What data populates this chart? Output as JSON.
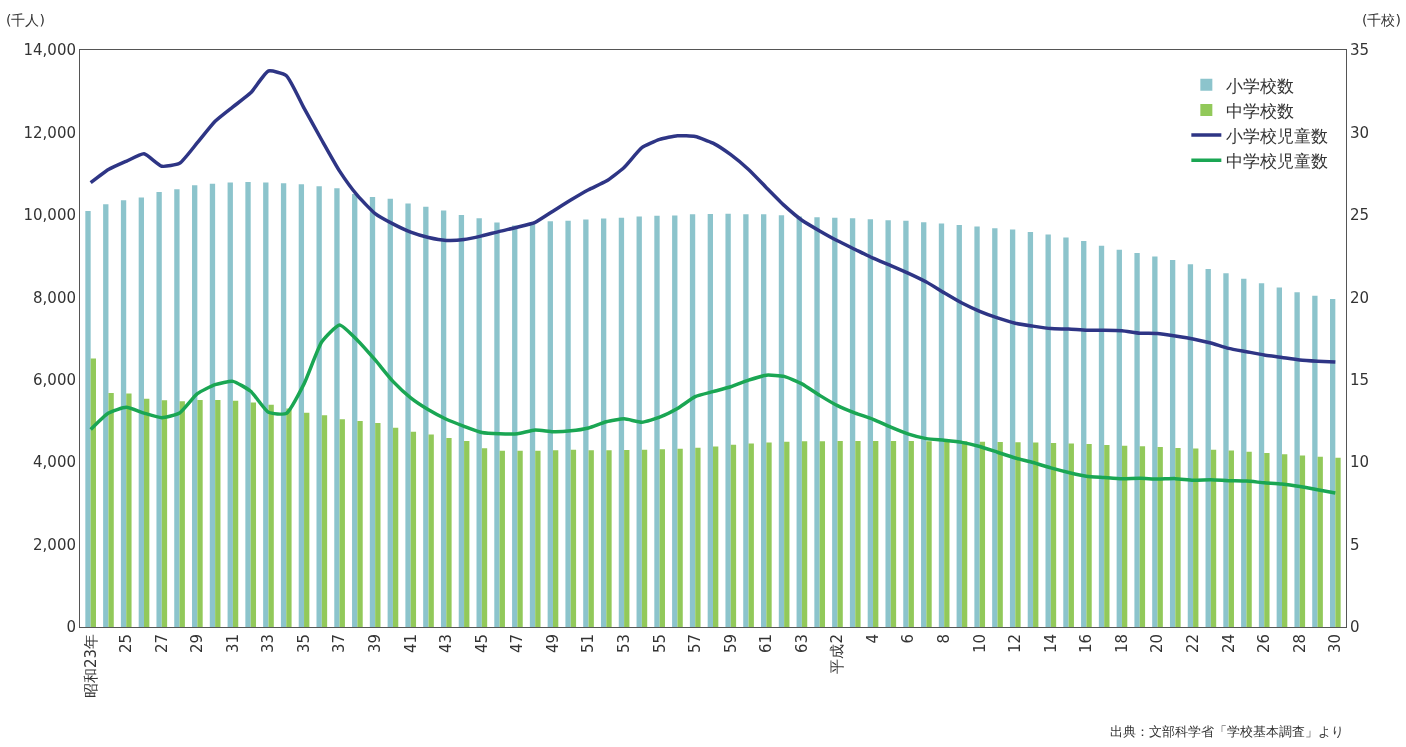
{
  "chart_data": {
    "type": "bar",
    "ylabel": "(千人)",
    "y2label": "(千校)",
    "categories": [
      "昭和23年",
      null,
      "25",
      null,
      "27",
      null,
      "29",
      null,
      "31",
      null,
      "33",
      null,
      "35",
      null,
      "37",
      null,
      "39",
      null,
      "41",
      null,
      "43",
      null,
      "45",
      null,
      "47",
      null,
      "49",
      null,
      "51",
      null,
      "53",
      null,
      "55",
      null,
      "57",
      null,
      "59",
      null,
      "61",
      null,
      "63",
      null,
      "平成2",
      null,
      "4",
      null,
      "6",
      null,
      "8",
      null,
      "10",
      null,
      "12",
      null,
      "14",
      null,
      "16",
      null,
      "18",
      null,
      "20",
      null,
      "22",
      null,
      "24",
      null,
      "26",
      null,
      "28",
      null,
      "30"
    ],
    "series": [
      {
        "name": "小学校数",
        "axis": "y2",
        "color": "#8cc4cc",
        "values": [
          25.24,
          25.64,
          25.88,
          26.06,
          26.38,
          26.56,
          26.8,
          26.88,
          26.96,
          26.99,
          26.96,
          26.92,
          26.86,
          26.74,
          26.62,
          26.26,
          26.08,
          25.98,
          25.69,
          25.49,
          25.26,
          24.99,
          24.79,
          24.54,
          24.36,
          24.47,
          24.61,
          24.65,
          24.72,
          24.78,
          24.83,
          24.9,
          24.95,
          24.96,
          25.04,
          25.05,
          25.06,
          25.04,
          25.04,
          24.98,
          24.9,
          24.85,
          24.83,
          24.8,
          24.73,
          24.68,
          24.64,
          24.55,
          24.48,
          24.38,
          24.3,
          24.19,
          24.11,
          23.96,
          23.81,
          23.63,
          23.42,
          23.12,
          22.88,
          22.69,
          22.48,
          22.26,
          22.0,
          21.72,
          21.46,
          21.13,
          20.85,
          20.6,
          20.31,
          20.1,
          19.89
        ]
      },
      {
        "name": "中学校数",
        "axis": "y2",
        "color": "#92c95a",
        "values": [
          16.29,
          14.2,
          14.17,
          13.84,
          13.75,
          13.69,
          13.77,
          13.77,
          13.72,
          13.62,
          13.48,
          13.25,
          12.99,
          12.85,
          12.6,
          12.5,
          12.38,
          12.08,
          11.85,
          11.68,
          11.46,
          11.28,
          10.84,
          10.69,
          10.69,
          10.69,
          10.72,
          10.75,
          10.72,
          10.72,
          10.73,
          10.75,
          10.78,
          10.81,
          10.88,
          10.95,
          11.05,
          11.13,
          11.19,
          11.23,
          11.27,
          11.26,
          11.28,
          11.29,
          11.29,
          11.29,
          11.29,
          11.27,
          11.26,
          11.26,
          11.24,
          11.22,
          11.21,
          11.19,
          11.16,
          11.13,
          11.1,
          11.04,
          11.0,
          10.96,
          10.92,
          10.86,
          10.82,
          10.75,
          10.7,
          10.63,
          10.56,
          10.48,
          10.4,
          10.33,
          10.27
        ]
      },
      {
        "name": "小学校児童数",
        "type": "line",
        "color": "#2e3585",
        "values": [
          10780,
          11100,
          11300,
          11480,
          11180,
          11250,
          11750,
          12270,
          12620,
          12960,
          13490,
          13380,
          12590,
          11810,
          11060,
          10470,
          10030,
          9780,
          9580,
          9450,
          9380,
          9400,
          9490,
          9600,
          9700,
          9820,
          10090,
          10360,
          10610,
          10820,
          11150,
          11630,
          11830,
          11920,
          11900,
          11740,
          11460,
          11100,
          10660,
          10230,
          9870,
          9610,
          9370,
          9160,
          8950,
          8770,
          8580,
          8370,
          8110,
          7860,
          7660,
          7500,
          7370,
          7300,
          7240,
          7230,
          7200,
          7200,
          7190,
          7130,
          7120,
          7060,
          6990,
          6890,
          6760,
          6680,
          6600,
          6540,
          6480,
          6450,
          6430
        ]
      },
      {
        "name": "中学校児童数",
        "type": "line",
        "color": "#1aa653",
        "values": [
          4790,
          5190,
          5330,
          5190,
          5080,
          5190,
          5660,
          5880,
          5960,
          5720,
          5210,
          5180,
          5900,
          6920,
          7330,
          6960,
          6480,
          5960,
          5560,
          5270,
          5040,
          4870,
          4720,
          4690,
          4690,
          4780,
          4740,
          4760,
          4830,
          4980,
          5050,
          4970,
          5090,
          5300,
          5590,
          5710,
          5830,
          5990,
          6110,
          6080,
          5900,
          5620,
          5370,
          5190,
          5040,
          4850,
          4680,
          4570,
          4530,
          4480,
          4380,
          4240,
          4100,
          3990,
          3860,
          3750,
          3660,
          3630,
          3600,
          3610,
          3590,
          3600,
          3560,
          3570,
          3550,
          3540,
          3500,
          3470,
          3410,
          3330,
          3250
        ]
      }
    ],
    "ylim": [
      0,
      14000
    ],
    "yticks": [
      0,
      {
        "value": 2000,
        "label": "2,000"
      },
      {
        "value": 4000,
        "label": "4,000"
      },
      {
        "value": 6000,
        "label": "6,000"
      },
      {
        "value": 8000,
        "label": "8,000"
      },
      {
        "value": 10000,
        "label": "10,000"
      },
      {
        "value": 12000,
        "label": "12,000"
      },
      {
        "value": 14000,
        "label": "14,000"
      }
    ],
    "y2lim": [
      0,
      35
    ],
    "y2ticks": [
      0,
      5,
      10,
      15,
      20,
      25,
      30,
      35
    ],
    "grid": false,
    "legend": "top right",
    "annotations": [
      "出典：文部科学省「学校基本調査」より"
    ]
  }
}
